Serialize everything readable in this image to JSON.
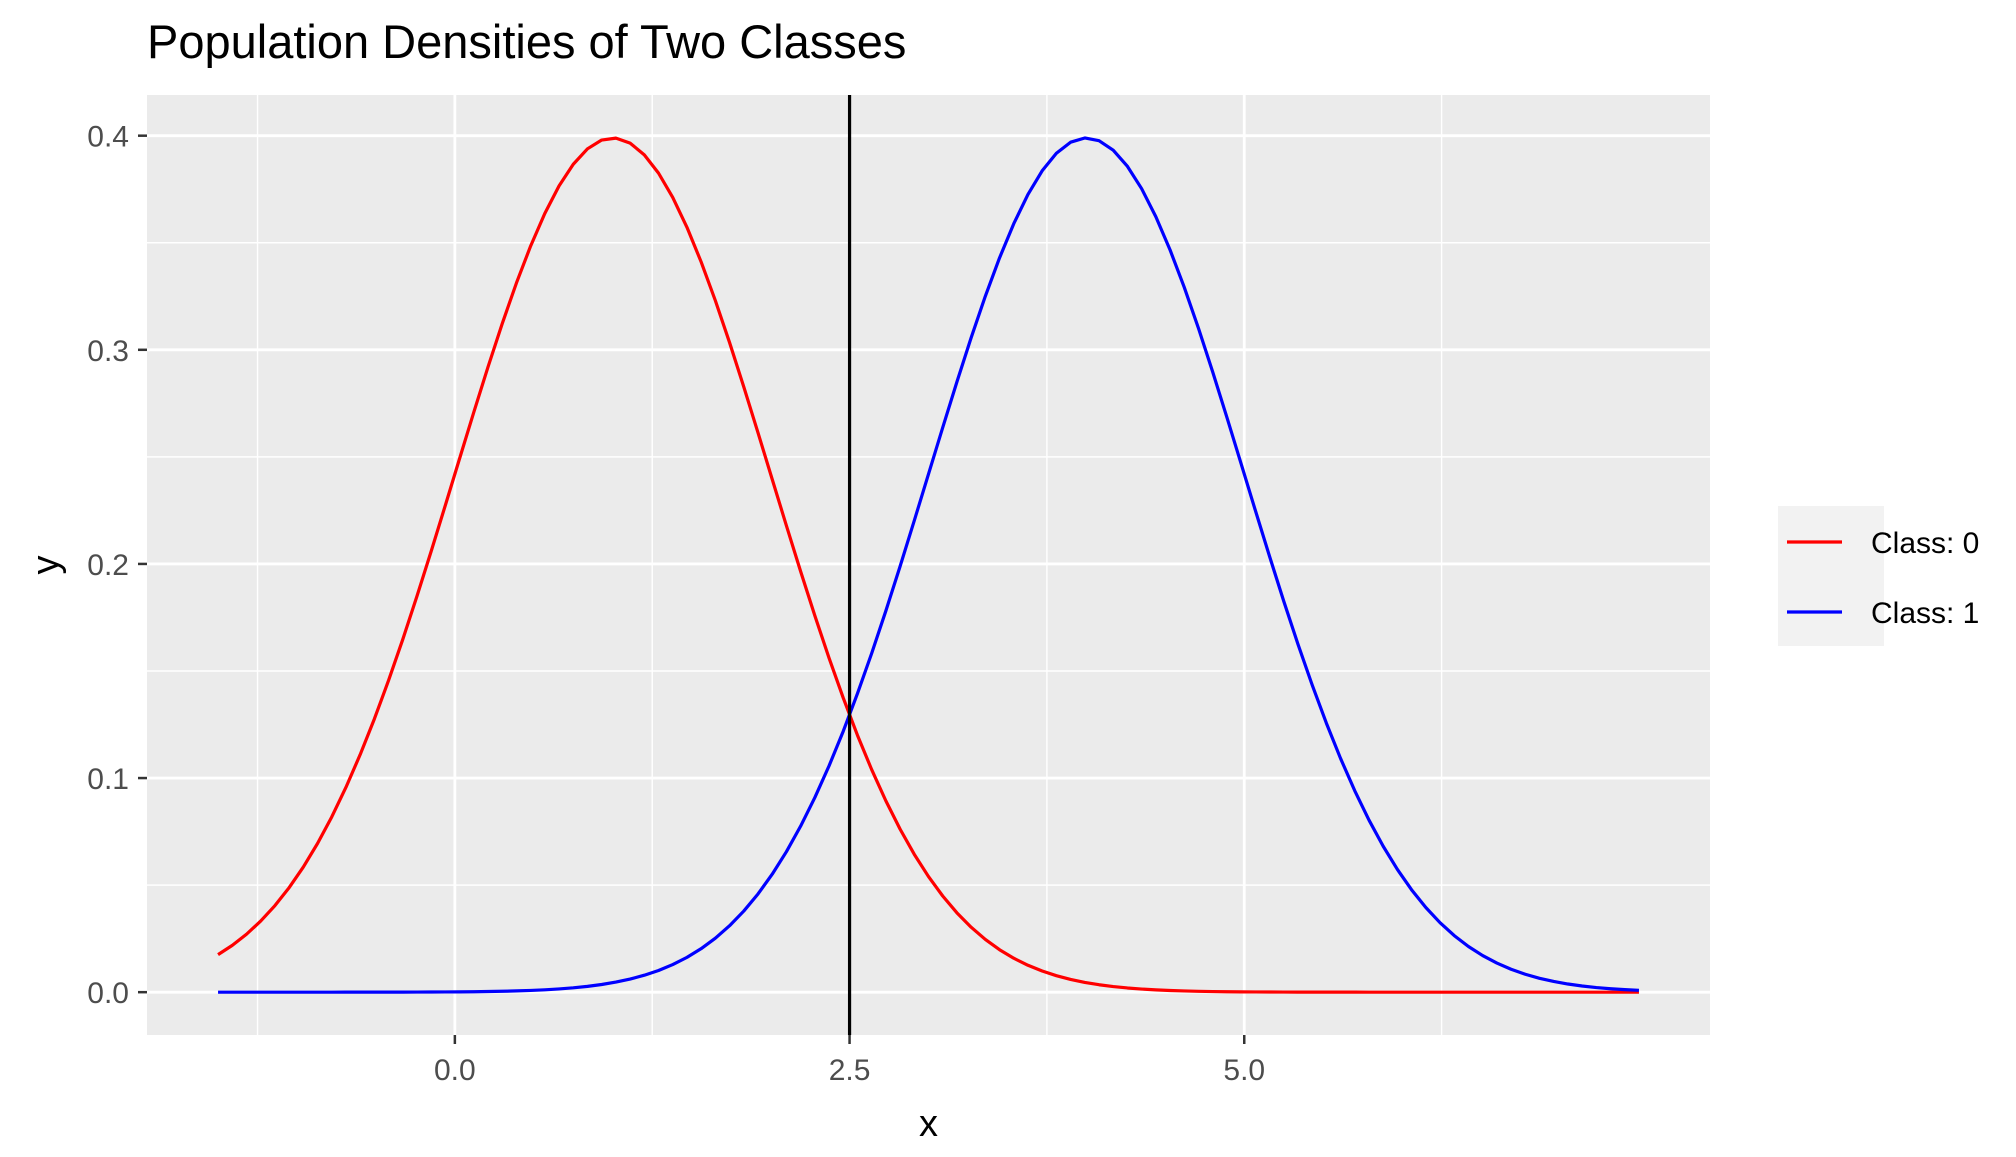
{
  "chart_data": {
    "type": "line",
    "title": "Population Densities of Two Classes",
    "xlabel": "x",
    "ylabel": "y",
    "xlim": [
      -1.95,
      7.95
    ],
    "ylim": [
      -0.02,
      0.419
    ],
    "x_major_ticks": [
      0.0,
      2.5,
      5.0
    ],
    "x_tick_labels": [
      "0.0",
      "2.5",
      "5.0"
    ],
    "x_minor_ticks": [
      -1.25,
      1.25,
      3.75,
      6.25
    ],
    "y_major_ticks": [
      0.0,
      0.1,
      0.2,
      0.3,
      0.4
    ],
    "y_tick_labels": [
      "0.0",
      "0.1",
      "0.2",
      "0.3",
      "0.4"
    ],
    "y_minor_ticks": [
      0.05,
      0.15,
      0.25,
      0.35
    ],
    "grid": true,
    "panel_background": "#ebebeb",
    "legend_position": "right",
    "x_range": [
      -1.5,
      7.5
    ],
    "series": [
      {
        "name": "Class: 0",
        "mean": 1,
        "sd": 1,
        "color": "#ff0000"
      },
      {
        "name": "Class: 1",
        "mean": 4,
        "sd": 1,
        "color": "#0000ff"
      }
    ],
    "vline": {
      "x": 2.5,
      "color": "#000000"
    }
  }
}
